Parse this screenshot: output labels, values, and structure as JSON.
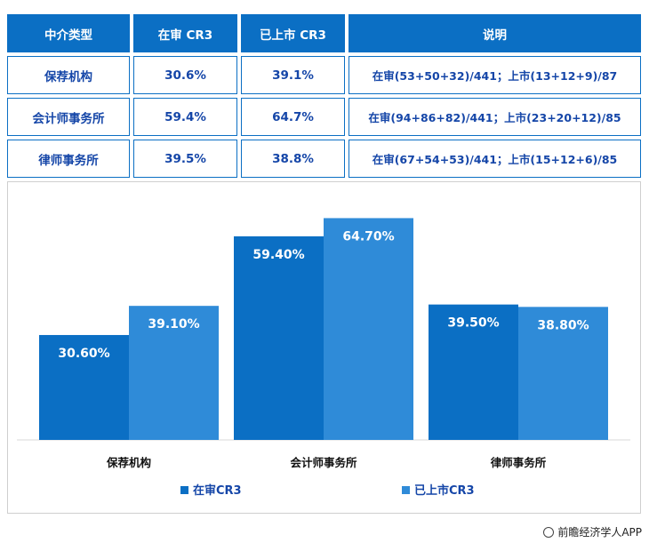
{
  "table": {
    "headers": [
      "中介类型",
      "在审 CR3",
      "已上市 CR3",
      "说明"
    ],
    "rows": [
      [
        "保荐机构",
        "30.6%",
        "39.1%",
        "在审(53+50+32)/441；上市(13+12+9)/87"
      ],
      [
        "会计师事务所",
        "59.4%",
        "64.7%",
        "在审(94+86+82)/441；上市(23+20+12)/85"
      ],
      [
        "律师事务所",
        "39.5%",
        "38.8%",
        "在审(67+54+53)/441；上市(15+12+6)/85"
      ]
    ]
  },
  "chart_data": {
    "type": "bar",
    "categories": [
      "保荐机构",
      "会计师事务所",
      "律师事务所"
    ],
    "series": [
      {
        "name": "在审CR3",
        "values": [
          30.6,
          59.4,
          39.5
        ],
        "labels": [
          "30.60%",
          "59.40%",
          "39.50%"
        ],
        "color": "#0b6fc4"
      },
      {
        "name": "已上市CR3",
        "values": [
          39.1,
          64.7,
          38.8
        ],
        "labels": [
          "39.10%",
          "64.70%",
          "38.80%"
        ],
        "color": "#2f8bd8"
      }
    ],
    "ylim": [
      0,
      70
    ],
    "grid": false,
    "legend": "bottom"
  },
  "footer": {
    "source": "前瞻经济学人APP",
    "icon": "qianzhan-logo-icon"
  }
}
